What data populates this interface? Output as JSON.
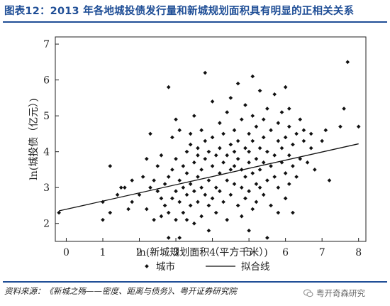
{
  "header": {
    "title": "图表12：2013 年各地城投债发行量和新城规划面积具有明显的正相关关系"
  },
  "footer": {
    "source": "资料来源：《新城之殇——密度、距离与债务》、粤开证券研究院",
    "watermark": "粤开奇森研究"
  },
  "colors": {
    "title": "#1f4e96",
    "rule": "#1f4e96",
    "points": "#111111",
    "line": "#111111"
  },
  "chart_data": {
    "type": "scatter",
    "title": "",
    "xlabel": "ln(新城规划面积（平方千米）)",
    "ylabel": "ln(城投债（亿元）)",
    "xlim": [
      -0.3,
      8.2
    ],
    "ylim": [
      1.5,
      7.2
    ],
    "xticks": [
      0,
      1,
      2,
      3,
      4,
      5,
      6,
      7,
      8
    ],
    "yticks": [
      2,
      3,
      4,
      5,
      6,
      7
    ],
    "grid": false,
    "legend": {
      "position": "bottom",
      "entries": [
        "城市",
        "拟合线"
      ]
    },
    "fit_line": {
      "name": "拟合线",
      "x": [
        -0.2,
        8.0
      ],
      "y": [
        2.35,
        4.22
      ]
    },
    "series": [
      {
        "name": "城市",
        "points": [
          [
            -0.2,
            2.3
          ],
          [
            1.0,
            2.1
          ],
          [
            1.0,
            2.6
          ],
          [
            1.2,
            2.3
          ],
          [
            1.2,
            3.6
          ],
          [
            1.4,
            2.8
          ],
          [
            1.5,
            3.0
          ],
          [
            1.6,
            3.0
          ],
          [
            1.7,
            2.4
          ],
          [
            1.8,
            2.6
          ],
          [
            1.8,
            3.2
          ],
          [
            2.0,
            2.8
          ],
          [
            2.1,
            3.3
          ],
          [
            2.2,
            2.4
          ],
          [
            2.2,
            3.8
          ],
          [
            2.3,
            3.0
          ],
          [
            2.3,
            4.5
          ],
          [
            2.4,
            2.1
          ],
          [
            2.4,
            3.2
          ],
          [
            2.5,
            2.9
          ],
          [
            2.5,
            3.6
          ],
          [
            2.6,
            2.7
          ],
          [
            2.6,
            3.9
          ],
          [
            2.6,
            2.2
          ],
          [
            2.7,
            3.1
          ],
          [
            2.7,
            2.5
          ],
          [
            2.8,
            1.6
          ],
          [
            2.8,
            2.3
          ],
          [
            2.8,
            3.3
          ],
          [
            2.8,
            5.8
          ],
          [
            2.9,
            2.7
          ],
          [
            2.9,
            3.5
          ],
          [
            2.9,
            4.4
          ],
          [
            3.0,
            2.9
          ],
          [
            3.0,
            3.8
          ],
          [
            3.0,
            2.1
          ],
          [
            3.0,
            4.9
          ],
          [
            3.1,
            3.2
          ],
          [
            3.1,
            2.6
          ],
          [
            3.1,
            4.6
          ],
          [
            3.1,
            1.6
          ],
          [
            3.2,
            3.0
          ],
          [
            3.2,
            3.6
          ],
          [
            3.2,
            2.3
          ],
          [
            3.3,
            2.8
          ],
          [
            3.3,
            4.0
          ],
          [
            3.3,
            3.4
          ],
          [
            3.3,
            2.1
          ],
          [
            3.4,
            4.2
          ],
          [
            3.4,
            3.1
          ],
          [
            3.4,
            2.5
          ],
          [
            3.4,
            4.5
          ],
          [
            3.5,
            3.7
          ],
          [
            3.5,
            2.9
          ],
          [
            3.5,
            2.0
          ],
          [
            3.5,
            5.0
          ],
          [
            3.6,
            3.3
          ],
          [
            3.6,
            4.1
          ],
          [
            3.6,
            2.6
          ],
          [
            3.6,
            3.9
          ],
          [
            3.7,
            3.0
          ],
          [
            3.7,
            4.6
          ],
          [
            3.7,
            2.2
          ],
          [
            3.7,
            3.5
          ],
          [
            3.8,
            3.8
          ],
          [
            3.8,
            2.8
          ],
          [
            3.8,
            4.3
          ],
          [
            3.8,
            6.2
          ],
          [
            3.9,
            3.2
          ],
          [
            3.9,
            2.5
          ],
          [
            3.9,
            4.0
          ],
          [
            3.9,
            1.8
          ],
          [
            4.0,
            3.6
          ],
          [
            4.0,
            4.4
          ],
          [
            4.0,
            2.7
          ],
          [
            4.0,
            5.4
          ],
          [
            4.1,
            3.0
          ],
          [
            4.1,
            3.9
          ],
          [
            4.1,
            2.3
          ],
          [
            4.2,
            4.1
          ],
          [
            4.2,
            3.4
          ],
          [
            4.2,
            4.8
          ],
          [
            4.2,
            2.9
          ],
          [
            4.3,
            3.7
          ],
          [
            4.3,
            2.6
          ],
          [
            4.3,
            4.5
          ],
          [
            4.4,
            3.2
          ],
          [
            4.4,
            5.1
          ],
          [
            4.4,
            3.9
          ],
          [
            4.4,
            2.1
          ],
          [
            4.5,
            4.2
          ],
          [
            4.5,
            3.5
          ],
          [
            4.5,
            2.8
          ],
          [
            4.5,
            5.5
          ],
          [
            4.6,
            3.1
          ],
          [
            4.6,
            4.0
          ],
          [
            4.6,
            3.6
          ],
          [
            4.6,
            4.6
          ],
          [
            4.7,
            2.5
          ],
          [
            4.7,
            3.8
          ],
          [
            4.7,
            4.3
          ],
          [
            4.7,
            5.9
          ],
          [
            4.8,
            3.0
          ],
          [
            4.8,
            3.5
          ],
          [
            4.8,
            4.9
          ],
          [
            4.8,
            2.2
          ],
          [
            4.9,
            4.1
          ],
          [
            4.9,
            3.3
          ],
          [
            4.9,
            2.7
          ],
          [
            4.9,
            5.3
          ],
          [
            5.0,
            3.7
          ],
          [
            5.0,
            4.5
          ],
          [
            5.0,
            2.9
          ],
          [
            5.0,
            1.8
          ],
          [
            5.0,
            4.0
          ],
          [
            5.1,
            3.4
          ],
          [
            5.1,
            5.0
          ],
          [
            5.1,
            2.4
          ],
          [
            5.1,
            6.1
          ],
          [
            5.1,
            4.3
          ],
          [
            5.2,
            3.1
          ],
          [
            5.2,
            3.8
          ],
          [
            5.2,
            4.7
          ],
          [
            5.2,
            2.6
          ],
          [
            5.3,
            4.1
          ],
          [
            5.3,
            3.5
          ],
          [
            5.3,
            5.7
          ],
          [
            5.3,
            3.0
          ],
          [
            5.4,
            4.4
          ],
          [
            5.4,
            2.8
          ],
          [
            5.4,
            3.7
          ],
          [
            5.4,
            4.9
          ],
          [
            5.5,
            3.2
          ],
          [
            5.5,
            4.0
          ],
          [
            5.5,
            5.2
          ],
          [
            5.5,
            1.6
          ],
          [
            5.6,
            3.6
          ],
          [
            5.6,
            4.6
          ],
          [
            5.6,
            2.5
          ],
          [
            5.7,
            3.9
          ],
          [
            5.7,
            3.3
          ],
          [
            5.7,
            5.6
          ],
          [
            5.8,
            4.3
          ],
          [
            5.8,
            3.0
          ],
          [
            5.8,
            4.8
          ],
          [
            5.8,
            2.3
          ],
          [
            5.9,
            3.7
          ],
          [
            5.9,
            4.1
          ],
          [
            5.9,
            5.1
          ],
          [
            6.0,
            3.4
          ],
          [
            6.0,
            4.4
          ],
          [
            6.0,
            2.7
          ],
          [
            6.0,
            5.8
          ],
          [
            6.1,
            3.9
          ],
          [
            6.1,
            4.7
          ],
          [
            6.1,
            3.1
          ],
          [
            6.1,
            5.2
          ],
          [
            6.2,
            4.2
          ],
          [
            6.2,
            2.3
          ],
          [
            6.2,
            3.6
          ],
          [
            6.3,
            4.5
          ],
          [
            6.3,
            3.3
          ],
          [
            6.4,
            4.9
          ],
          [
            6.4,
            3.8
          ],
          [
            6.5,
            4.3
          ],
          [
            6.5,
            4.6
          ],
          [
            6.6,
            3.7
          ],
          [
            6.7,
            4.5
          ],
          [
            6.7,
            4.1
          ],
          [
            6.8,
            3.5
          ],
          [
            7.0,
            4.3
          ],
          [
            7.1,
            4.6
          ],
          [
            7.2,
            3.2
          ],
          [
            7.5,
            4.7
          ],
          [
            7.6,
            5.2
          ],
          [
            7.7,
            6.5
          ],
          [
            8.0,
            4.7
          ]
        ]
      }
    ]
  }
}
